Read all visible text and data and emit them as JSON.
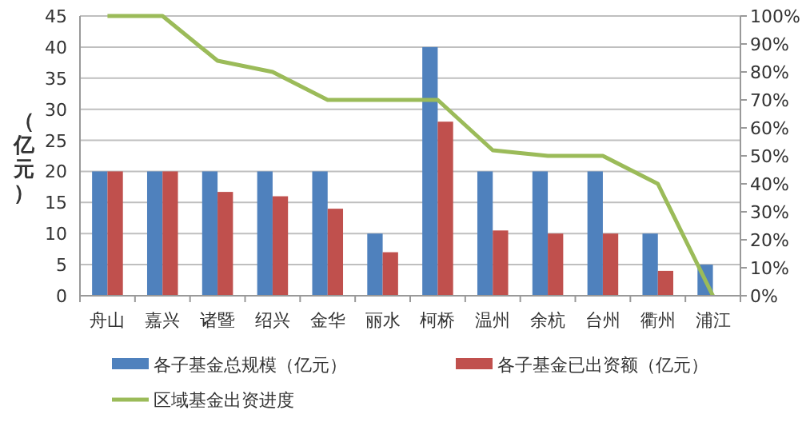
{
  "chart_data": {
    "type": "bar",
    "ylabel": "（亿元）",
    "categories": [
      "舟山",
      "嘉兴",
      "诸暨",
      "绍兴",
      "金华",
      "丽水",
      "柯桥",
      "温州",
      "余杭",
      "台州",
      "衢州",
      "浦江"
    ],
    "series": [
      {
        "name": "各子基金总规模（亿元）",
        "color": "#4f81bd",
        "values": [
          20,
          20,
          20,
          20,
          20,
          10,
          40,
          20,
          20,
          20,
          10,
          5
        ]
      },
      {
        "name": "各子基金已出资额（亿元）",
        "color": "#c0504d",
        "values": [
          20,
          20,
          16.7,
          16,
          14,
          7,
          28,
          10.5,
          10,
          10,
          4,
          0
        ]
      },
      {
        "name": "区域基金出资进度",
        "type": "line",
        "axis": "y2",
        "color": "#9bbb59",
        "values": [
          100,
          100,
          84,
          80,
          70,
          70,
          70,
          52,
          50,
          50,
          40,
          0
        ]
      }
    ],
    "ylim": [
      0,
      45
    ],
    "yticks": [
      0,
      5,
      10,
      15,
      20,
      25,
      30,
      35,
      40,
      45
    ],
    "y2lim": [
      0,
      100
    ],
    "y2ticks": [
      {
        "value": 0,
        "label": "0%"
      },
      {
        "value": 10,
        "label": "10%"
      },
      {
        "value": 20,
        "label": "20%"
      },
      {
        "value": 30,
        "label": "30%"
      },
      {
        "value": 40,
        "label": "40%"
      },
      {
        "value": 50,
        "label": "50%"
      },
      {
        "value": 60,
        "label": "60%"
      },
      {
        "value": 70,
        "label": "70%"
      },
      {
        "value": 80,
        "label": "80%"
      },
      {
        "value": 90,
        "label": "90%"
      },
      {
        "value": 100,
        "label": "100%"
      }
    ],
    "grid": "y",
    "legend": "bottom"
  }
}
